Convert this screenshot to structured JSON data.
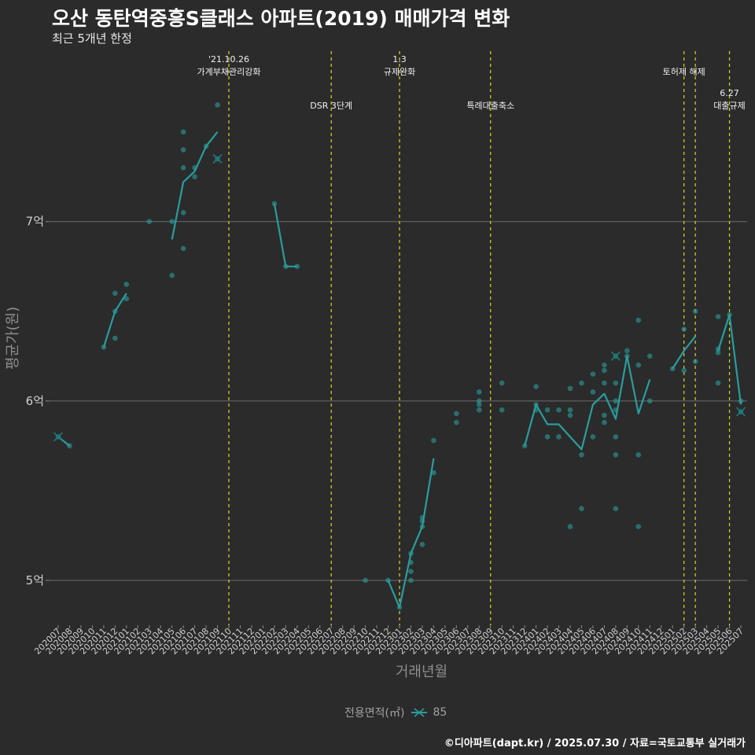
{
  "header": {
    "title": "오산 동탄역중흥S클래스 아파트(2019) 매매가격 변화",
    "subtitle": "최근 5개년 한정"
  },
  "footer": {
    "caption": "©디아파트(dapt.kr) / 2025.07.30 / 자료=국토교통부 실거래가"
  },
  "legend": {
    "title": "전용면적(㎡)",
    "items": [
      {
        "label": "85",
        "color": "#2a9d9d"
      }
    ]
  },
  "chart_data": {
    "type": "line",
    "title": "오산 동탄역중흥S클래스 아파트(2019) 매매가격 변화",
    "xlabel": "거래년월",
    "ylabel": "평균가(원)",
    "ylim": [
      4.75,
      7.95
    ],
    "yticks": [
      {
        "value": 5,
        "label": "5억"
      },
      {
        "value": 6,
        "label": "6억"
      },
      {
        "value": 7,
        "label": "7억"
      }
    ],
    "categories": [
      "202007",
      "202008",
      "202009",
      "202010",
      "202011",
      "202012",
      "202101",
      "202102",
      "202103",
      "202104",
      "202105",
      "202106",
      "202107",
      "202108",
      "202109",
      "202110",
      "202111",
      "202112",
      "202201",
      "202202",
      "202203",
      "202204",
      "202205",
      "202206",
      "202207",
      "202208",
      "202209",
      "202210",
      "202211",
      "202212",
      "202301",
      "202302",
      "202303",
      "202304",
      "202305",
      "202306",
      "202307",
      "202308",
      "202309",
      "202310",
      "202311",
      "202312",
      "202401",
      "202402",
      "202403",
      "202404",
      "202405",
      "202406",
      "202407",
      "202408",
      "202409",
      "202410",
      "202411",
      "202412",
      "202501",
      "202502",
      "202503",
      "202504",
      "202505",
      "202506",
      "202507"
    ],
    "series": [
      {
        "name": "85",
        "color": "#2a9d9d",
        "line_segments": [
          [
            [
              0,
              5.8
            ],
            [
              1,
              5.75
            ]
          ],
          [
            [
              4,
              6.3
            ],
            [
              5,
              6.5
            ],
            [
              6,
              6.6
            ]
          ],
          [
            [
              10,
              6.9
            ],
            [
              11,
              7.22
            ],
            [
              12,
              7.28
            ],
            [
              13,
              7.42
            ],
            [
              14,
              7.5
            ]
          ],
          [
            [
              19,
              7.1
            ],
            [
              20,
              6.75
            ],
            [
              21,
              6.75
            ]
          ],
          [
            [
              29,
              5.0
            ],
            [
              30,
              4.85
            ],
            [
              31,
              5.15
            ],
            [
              32,
              5.3
            ],
            [
              33,
              5.68
            ]
          ],
          [
            [
              41,
              5.75
            ],
            [
              42,
              5.98
            ],
            [
              43,
              5.87
            ],
            [
              44,
              5.87
            ],
            [
              45,
              5.8
            ],
            [
              46,
              5.73
            ],
            [
              47,
              5.98
            ],
            [
              48,
              6.04
            ],
            [
              49,
              5.9
            ],
            [
              50,
              6.25
            ],
            [
              51,
              5.93
            ],
            [
              52,
              6.12
            ]
          ],
          [
            [
              54,
              6.18
            ],
            [
              55,
              6.28
            ],
            [
              56,
              6.36
            ]
          ],
          [
            [
              58,
              6.28
            ],
            [
              59,
              6.48
            ],
            [
              60,
              5.98
            ]
          ]
        ],
        "points": [
          [
            0,
            5.8
          ],
          [
            1,
            5.75
          ],
          [
            4,
            6.3
          ],
          [
            5,
            6.35
          ],
          [
            5,
            6.5
          ],
          [
            5,
            6.6
          ],
          [
            6,
            6.57
          ],
          [
            6,
            6.65
          ],
          [
            8,
            7.0
          ],
          [
            10,
            6.7
          ],
          [
            10,
            7.0
          ],
          [
            11,
            6.85
          ],
          [
            11,
            7.05
          ],
          [
            11,
            7.3
          ],
          [
            11,
            7.4
          ],
          [
            11,
            7.5
          ],
          [
            12,
            7.25
          ],
          [
            12,
            7.3
          ],
          [
            13,
            7.42
          ],
          [
            14,
            7.35
          ],
          [
            14,
            7.65
          ],
          [
            19,
            7.1
          ],
          [
            20,
            6.75
          ],
          [
            21,
            6.75
          ],
          [
            27,
            5.0
          ],
          [
            29,
            5.0
          ],
          [
            30,
            4.85
          ],
          [
            31,
            5.0
          ],
          [
            31,
            5.05
          ],
          [
            31,
            5.1
          ],
          [
            31,
            5.15
          ],
          [
            32,
            5.2
          ],
          [
            32,
            5.3
          ],
          [
            32,
            5.33
          ],
          [
            32,
            5.35
          ],
          [
            33,
            5.6
          ],
          [
            33,
            5.78
          ],
          [
            35,
            5.88
          ],
          [
            35,
            5.93
          ],
          [
            37,
            5.95
          ],
          [
            37,
            5.98
          ],
          [
            37,
            6.0
          ],
          [
            37,
            6.05
          ],
          [
            39,
            5.95
          ],
          [
            39,
            6.1
          ],
          [
            41,
            5.75
          ],
          [
            42,
            5.95
          ],
          [
            42,
            5.98
          ],
          [
            42,
            6.08
          ],
          [
            43,
            5.8
          ],
          [
            43,
            5.95
          ],
          [
            44,
            5.8
          ],
          [
            44,
            5.95
          ],
          [
            45,
            5.3
          ],
          [
            45,
            5.92
          ],
          [
            45,
            5.95
          ],
          [
            45,
            6.07
          ],
          [
            46,
            5.4
          ],
          [
            46,
            5.7
          ],
          [
            46,
            6.1
          ],
          [
            47,
            5.8
          ],
          [
            47,
            6.05
          ],
          [
            47,
            6.15
          ],
          [
            48,
            5.88
          ],
          [
            48,
            5.92
          ],
          [
            48,
            6.1
          ],
          [
            48,
            6.17
          ],
          [
            48,
            6.2
          ],
          [
            49,
            5.4
          ],
          [
            49,
            5.7
          ],
          [
            49,
            5.8
          ],
          [
            49,
            5.95
          ],
          [
            49,
            6.0
          ],
          [
            49,
            6.1
          ],
          [
            49,
            6.25
          ],
          [
            50,
            6.25
          ],
          [
            50,
            6.28
          ],
          [
            51,
            5.3
          ],
          [
            51,
            5.7
          ],
          [
            51,
            6.2
          ],
          [
            51,
            6.45
          ],
          [
            52,
            6.0
          ],
          [
            52,
            6.25
          ],
          [
            54,
            6.18
          ],
          [
            55,
            6.17
          ],
          [
            55,
            6.4
          ],
          [
            56,
            6.22
          ],
          [
            56,
            6.5
          ],
          [
            58,
            6.1
          ],
          [
            58,
            6.27
          ],
          [
            58,
            6.29
          ],
          [
            58,
            6.47
          ],
          [
            59,
            6.48
          ],
          [
            60,
            5.94
          ],
          [
            60,
            6.0
          ]
        ],
        "cross_markers": [
          [
            0,
            5.8
          ],
          [
            14,
            7.35
          ],
          [
            49,
            6.25
          ],
          [
            60,
            5.94
          ]
        ]
      }
    ],
    "events": [
      {
        "index": 15,
        "label": "'21.10.26\n가계부채관리강화",
        "level": 1
      },
      {
        "index": 24,
        "label": "DSR 3단계",
        "level": 2
      },
      {
        "index": 30,
        "label": "1.3\n규제완화",
        "level": 1
      },
      {
        "index": 38,
        "label": "특례대출축소",
        "level": 2
      },
      {
        "index": 55,
        "label": "토허제 해제",
        "level": 1
      },
      {
        "index": 56,
        "label": "",
        "level": 0
      },
      {
        "index": 59,
        "label": "6.27\n대출규제",
        "level": 2
      }
    ]
  }
}
